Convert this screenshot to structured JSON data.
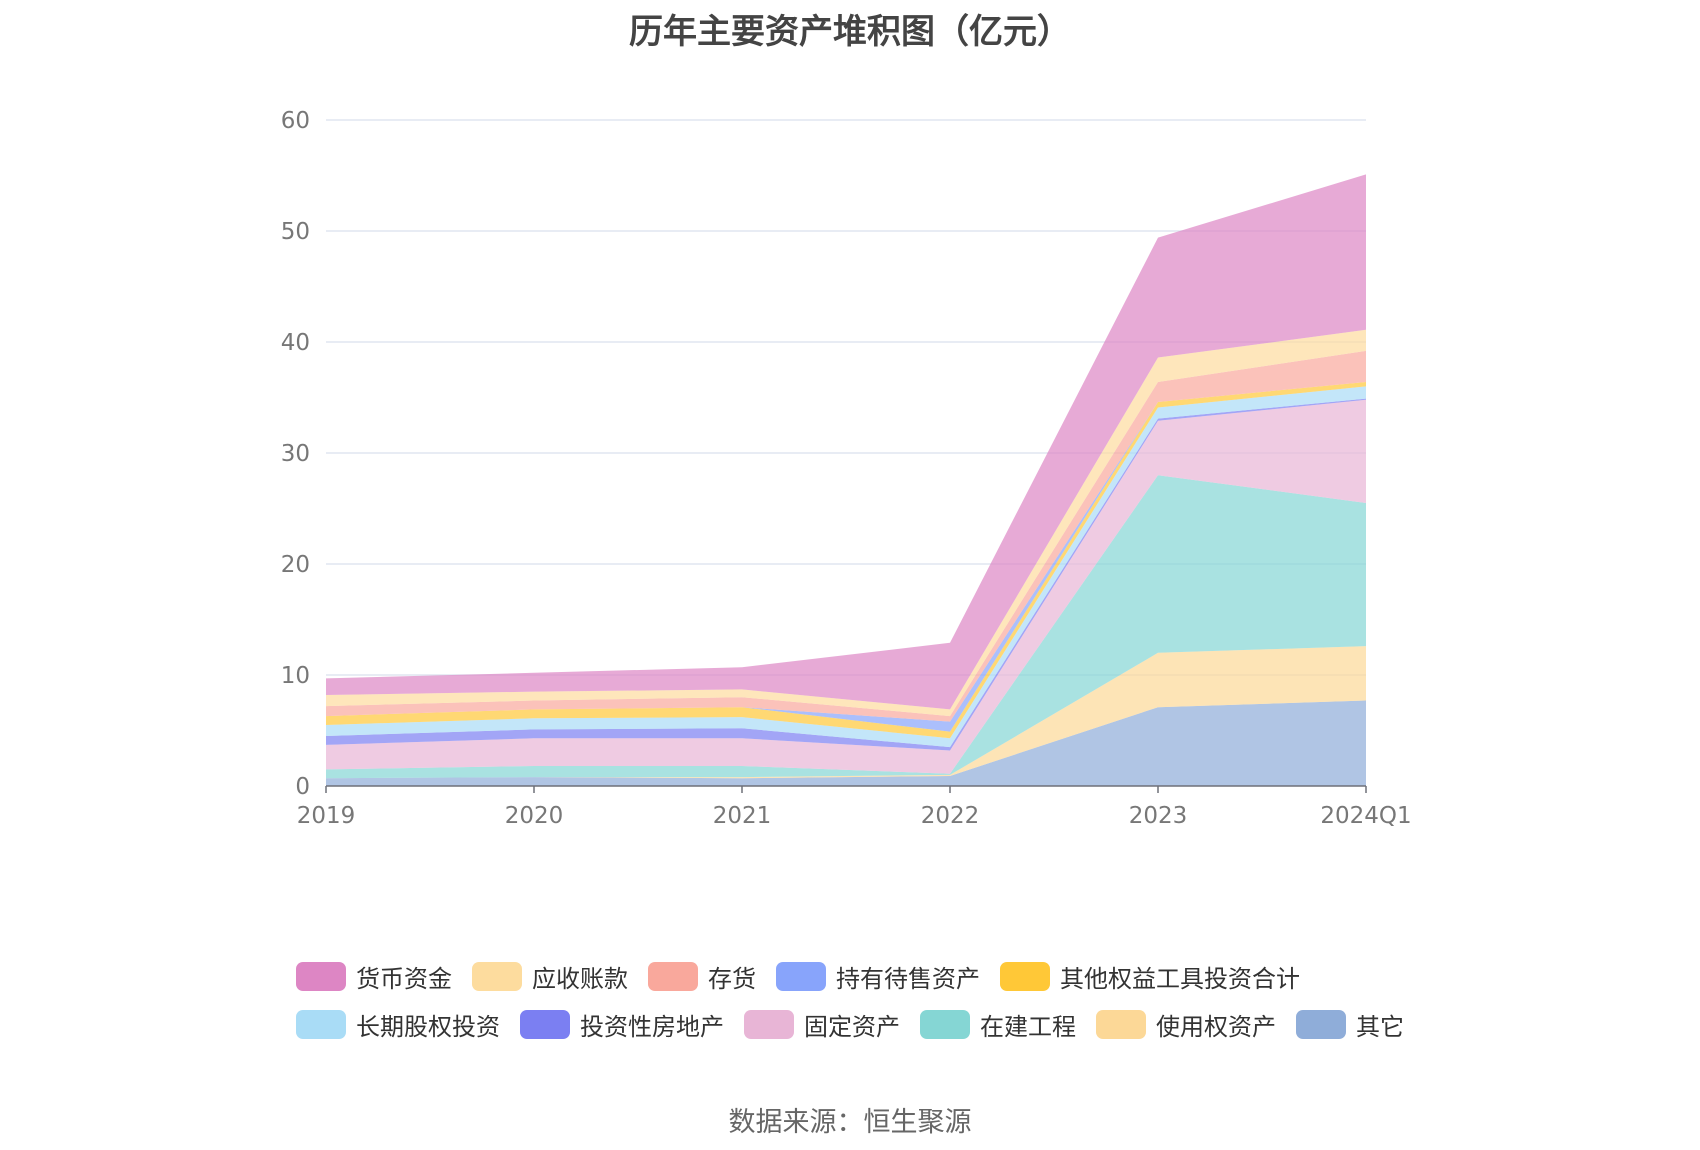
{
  "chart_data": {
    "type": "area",
    "stacked": true,
    "title": "历年主要资产堆积图（亿元）",
    "source": "数据来源：恒生聚源",
    "categories": [
      "2019",
      "2020",
      "2021",
      "2022",
      "2023",
      "2024Q1"
    ],
    "ylim": [
      0,
      60
    ],
    "yticks": [
      0,
      10,
      20,
      30,
      40,
      50,
      60
    ],
    "grid": true,
    "legend_position": "bottom",
    "series": [
      {
        "name": "其它",
        "color": "#8fadd9",
        "values": [
          0.7,
          0.8,
          0.7,
          0.9,
          7.1,
          7.7
        ]
      },
      {
        "name": "使用权资产",
        "color": "#fcd897",
        "values": [
          0.0,
          0.0,
          0.1,
          0.1,
          4.9,
          4.9
        ]
      },
      {
        "name": "在建工程",
        "color": "#85d6d4",
        "values": [
          0.8,
          1.0,
          1.0,
          0.1,
          16.0,
          12.9
        ]
      },
      {
        "name": "固定资产",
        "color": "#e8b5d6",
        "values": [
          2.2,
          2.5,
          2.5,
          2.1,
          4.9,
          9.3
        ]
      },
      {
        "name": "投资性房地产",
        "color": "#7b7ff2",
        "values": [
          0.8,
          0.8,
          0.9,
          0.3,
          0.2,
          0.1
        ]
      },
      {
        "name": "长期股权投资",
        "color": "#a9dcf6",
        "values": [
          1.0,
          1.0,
          1.0,
          0.8,
          1.0,
          1.1
        ]
      },
      {
        "name": "其他权益工具投资合计",
        "color": "#ffc837",
        "values": [
          0.8,
          0.8,
          0.9,
          0.6,
          0.5,
          0.4
        ]
      },
      {
        "name": "持有待售资产",
        "color": "#88a4fb",
        "values": [
          0.0,
          0.0,
          0.0,
          0.9,
          0.0,
          0.0
        ]
      },
      {
        "name": "存货",
        "color": "#f9a89c",
        "values": [
          0.9,
          0.8,
          0.9,
          0.5,
          1.8,
          2.8
        ]
      },
      {
        "name": "应收账款",
        "color": "#fddc9e",
        "values": [
          1.0,
          0.8,
          0.7,
          0.6,
          2.2,
          1.9
        ]
      },
      {
        "name": "货币资金",
        "color": "#dd86c4",
        "values": [
          1.5,
          1.7,
          2.0,
          6.0,
          10.8,
          14.0
        ]
      }
    ],
    "legend_order": [
      "货币资金",
      "应收账款",
      "存货",
      "持有待售资产",
      "其他权益工具投资合计",
      "长期股权投资",
      "投资性房地产",
      "固定资产",
      "在建工程",
      "使用权资产",
      "其它"
    ]
  }
}
